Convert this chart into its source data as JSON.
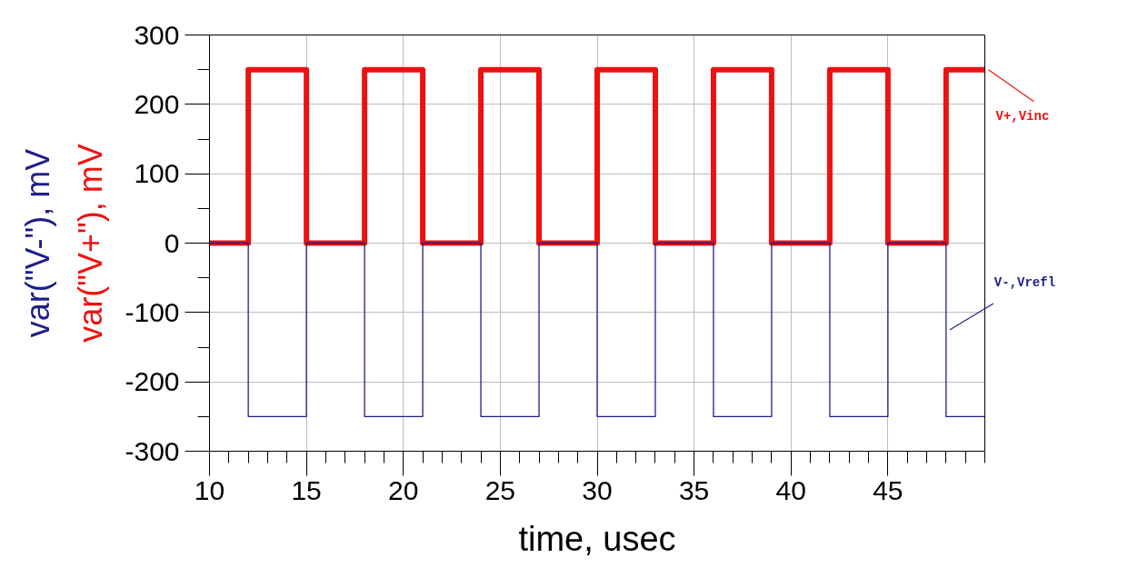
{
  "chart_data": {
    "type": "step",
    "xlabel": "time, usec",
    "xlim": [
      10,
      50
    ],
    "xticks": [
      10,
      {
        "value": 11,
        "label": null
      },
      {
        "value": 12,
        "label": null
      },
      {
        "value": 13,
        "label": null
      },
      {
        "value": 14,
        "label": null
      },
      15,
      {
        "value": 16,
        "label": null
      },
      {
        "value": 17,
        "label": null
      },
      {
        "value": 18,
        "label": null
      },
      {
        "value": 19,
        "label": null
      },
      20,
      {
        "value": 21,
        "label": null
      },
      {
        "value": 22,
        "label": null
      },
      {
        "value": 23,
        "label": null
      },
      {
        "value": 24,
        "label": null
      },
      25,
      {
        "value": 26,
        "label": null
      },
      {
        "value": 27,
        "label": null
      },
      {
        "value": 28,
        "label": null
      },
      {
        "value": 29,
        "label": null
      },
      30,
      {
        "value": 31,
        "label": null
      },
      {
        "value": 32,
        "label": null
      },
      {
        "value": 33,
        "label": null
      },
      {
        "value": 34,
        "label": null
      },
      35,
      {
        "value": 36,
        "label": null
      },
      {
        "value": 37,
        "label": null
      },
      {
        "value": 38,
        "label": null
      },
      {
        "value": 39,
        "label": null
      },
      40,
      {
        "value": 41,
        "label": null
      },
      {
        "value": 42,
        "label": null
      },
      {
        "value": 43,
        "label": null
      },
      {
        "value": 44,
        "label": null
      },
      45,
      {
        "value": 46,
        "label": null
      },
      {
        "value": 47,
        "label": null
      },
      {
        "value": 48,
        "label": null
      },
      {
        "value": 49,
        "label": null
      },
      {
        "value": 50,
        "label": null
      }
    ],
    "ylim": [
      -300,
      300
    ],
    "yticks": [
      -300,
      {
        "value": -250,
        "label": null
      },
      -200,
      {
        "value": -150,
        "label": null
      },
      -100,
      {
        "value": -50,
        "label": null
      },
      0,
      {
        "value": 50,
        "label": null
      },
      100,
      {
        "value": 150,
        "label": null
      },
      200,
      {
        "value": 250,
        "label": null
      },
      300
    ],
    "grid": true,
    "x": [
      10,
      12,
      15,
      18,
      21,
      24,
      27,
      30,
      33,
      36,
      39,
      42,
      45,
      48,
      50
    ],
    "series": [
      {
        "name": "var(\"V+\"), mV",
        "color": "#ee1111",
        "values": [
          0,
          250,
          0,
          250,
          0,
          250,
          0,
          250,
          0,
          250,
          0,
          250,
          0,
          250,
          250
        ]
      },
      {
        "name": "var(\"V-\"), mV",
        "color": "#1e1e8a",
        "values": [
          0,
          -250,
          0,
          -250,
          0,
          -250,
          0,
          -250,
          0,
          -250,
          0,
          -250,
          0,
          -250,
          -250
        ]
      }
    ],
    "annotations": [
      {
        "text": "V+,Vinc",
        "x": 50,
        "y": 250
      },
      {
        "text": "V-,Vrefl",
        "x": 48,
        "y": -125
      }
    ]
  }
}
